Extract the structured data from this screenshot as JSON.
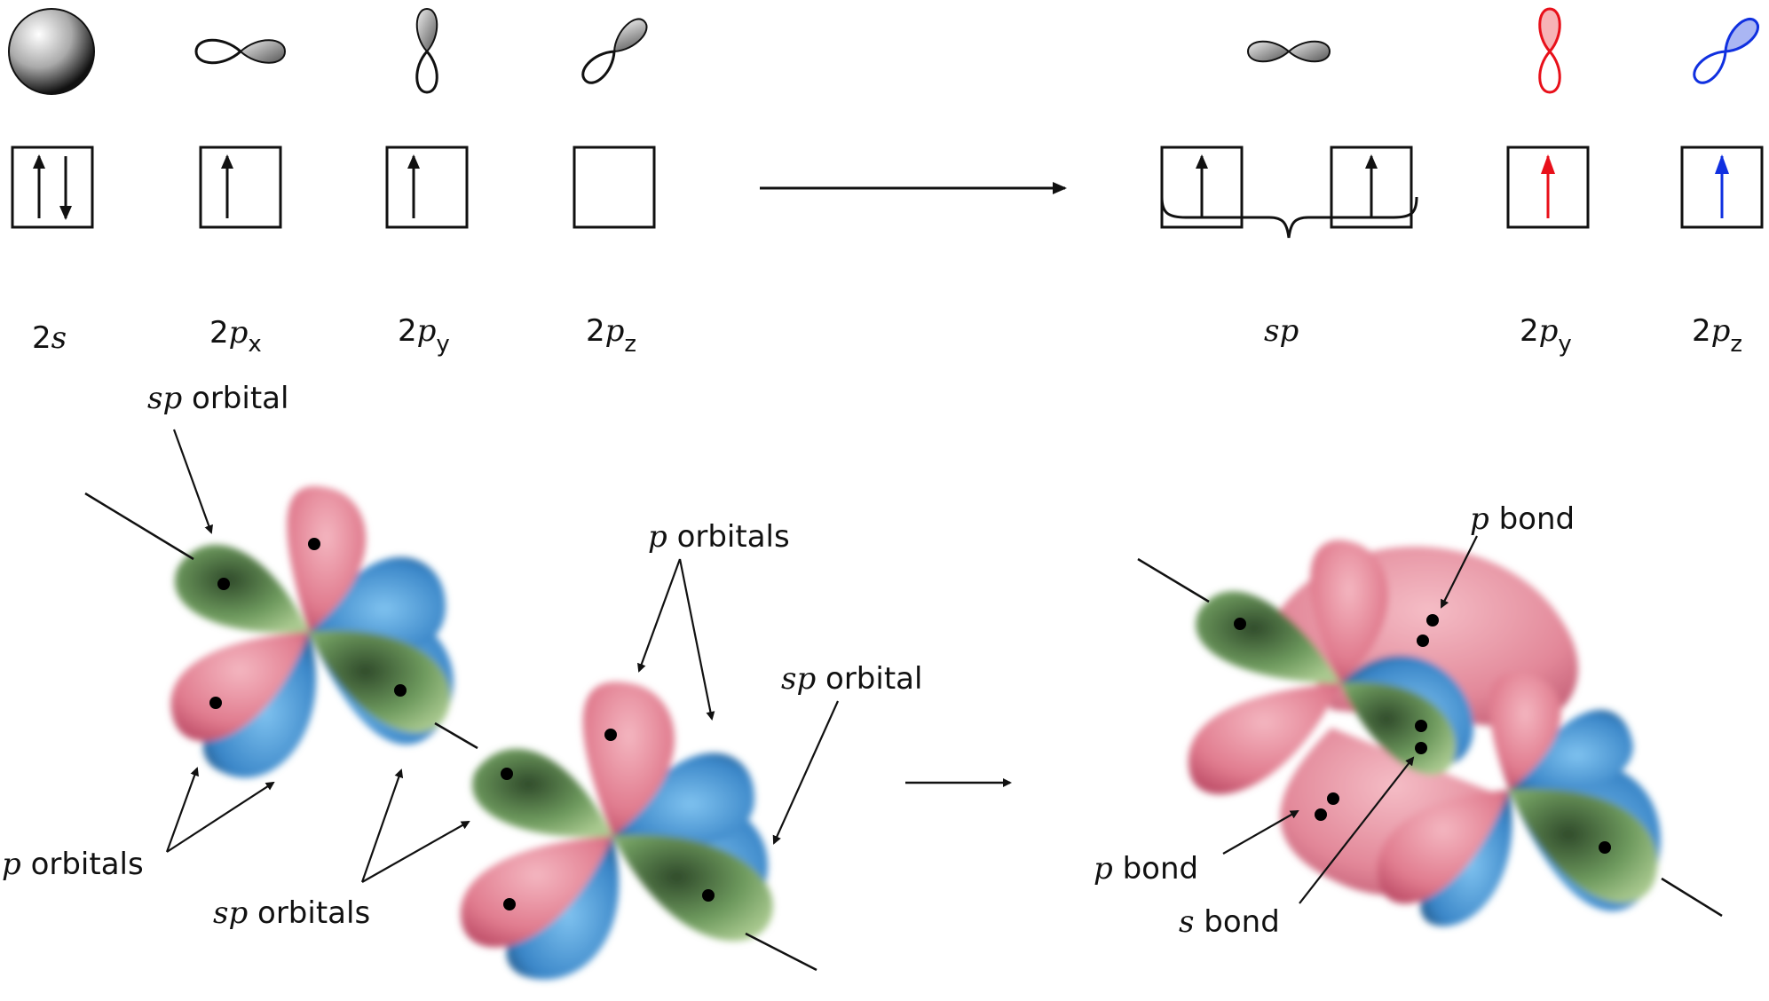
{
  "top": {
    "left_labels": [
      {
        "main": "2",
        "ital": "s",
        "sub": ""
      },
      {
        "main": "2",
        "ital": "p",
        "sub": "x"
      },
      {
        "main": "2",
        "ital": "p",
        "sub": "y"
      },
      {
        "main": "2",
        "ital": "p",
        "sub": "z"
      }
    ],
    "sp_label": "sp",
    "right_labels": [
      {
        "main": "2",
        "ital": "p",
        "sub": "y"
      },
      {
        "main": "2",
        "ital": "p",
        "sub": "z"
      }
    ],
    "colors": {
      "py": "#e8101a",
      "pz": "#1030e0",
      "black": "#111111"
    }
  },
  "bottom": {
    "left": {
      "sp_orbital_top": {
        "ital": "sp",
        "text": " orbital"
      },
      "p_orbitals_top": {
        "ital": "p",
        "text": " orbitals"
      },
      "sp_orbital_right": {
        "ital": "sp",
        "text": " orbital"
      },
      "p_orbitals_left": {
        "ital": "p",
        "text": " orbitals"
      },
      "sp_orbitals_bottom": {
        "ital": "sp",
        "text": " orbitals"
      }
    },
    "right": {
      "p_bond_top": {
        "ital": "p",
        "text": " bond"
      },
      "p_bond_left": {
        "ital": "p",
        "text": " bond"
      },
      "s_bond": {
        "ital": "s",
        "text": " bond"
      }
    },
    "lobe_colors": {
      "pink": "#e07b8e",
      "green": "#6e9a5e",
      "blue": "#4a8fcf"
    }
  }
}
